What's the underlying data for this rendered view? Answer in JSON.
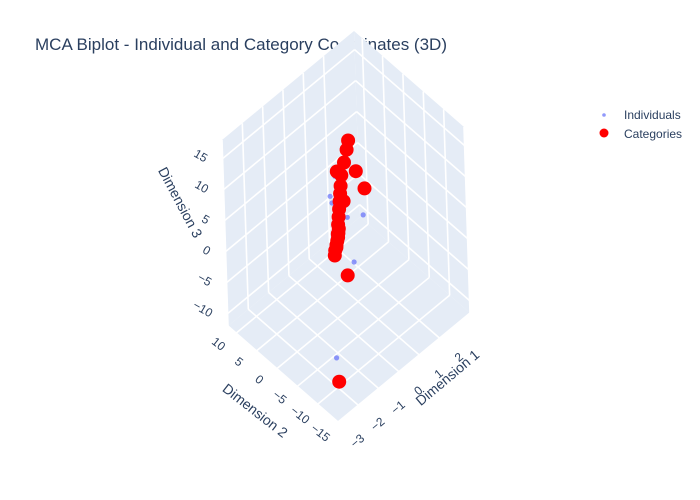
{
  "chart_data": {
    "type": "scatter3d",
    "title": "MCA Biplot - Individual and Category Coordinates (3D)",
    "axes": {
      "x": {
        "label": "Dimension 1",
        "range": [
          -3,
          3.5
        ],
        "ticks": [
          -3,
          -2,
          -1,
          0,
          1,
          2
        ]
      },
      "y": {
        "label": "Dimension 2",
        "range": [
          -15,
          12
        ],
        "ticks": [
          -15,
          -10,
          -5,
          0,
          5,
          10
        ]
      },
      "z": {
        "label": "Dimension 3",
        "range": [
          -12,
          18
        ],
        "ticks": [
          -10,
          -5,
          0,
          5,
          10,
          15
        ]
      }
    },
    "legend": {
      "placement": "top-right"
    },
    "colors": {
      "individuals": "#636efa",
      "categories": "#ff0000",
      "pane": "#e5ecf6",
      "grid": "#ffffff"
    },
    "series": [
      {
        "name": "Individuals",
        "points": [
          [
            -0.9,
            -12,
            14
          ],
          [
            -0.15,
            -4,
            7
          ],
          [
            -2.4,
            -12,
            -5
          ],
          [
            0.3,
            -3,
            -2
          ],
          [
            0.2,
            2,
            6
          ],
          [
            1.6,
            8,
            2
          ],
          [
            2.4,
            7,
            1
          ],
          [
            1.8,
            10,
            -4
          ],
          [
            0.1,
            -1,
            0.5
          ],
          [
            0.25,
            0.5,
            1
          ],
          [
            -0.2,
            -1.2,
            0.2
          ]
        ]
      },
      {
        "name": "Categories",
        "points": [
          [
            -0.8,
            -12,
            18
          ],
          [
            -0.3,
            -4,
            10
          ],
          [
            -2.5,
            -13,
            -8
          ],
          [
            -0.6,
            -6,
            0
          ],
          [
            0.7,
            3,
            -2
          ],
          [
            1.7,
            8,
            2.5
          ],
          [
            2.8,
            9,
            -1
          ],
          [
            0.0,
            -0.5,
            0.8
          ],
          [
            0.2,
            0.2,
            1.1
          ],
          [
            -0.1,
            -0.8,
            0.6
          ],
          [
            0.35,
            1.0,
            1.6
          ],
          [
            0.5,
            1.6,
            2.1
          ],
          [
            0.65,
            2.2,
            2.6
          ],
          [
            0.8,
            2.8,
            3.1
          ],
          [
            0.95,
            3.4,
            3.6
          ],
          [
            1.1,
            4.0,
            4.1
          ],
          [
            1.3,
            4.8,
            4.8
          ],
          [
            1.6,
            5.6,
            5.6
          ],
          [
            1.9,
            6.4,
            6.4
          ],
          [
            2.1,
            7.0,
            7.0
          ],
          [
            -0.25,
            -1.2,
            0.3
          ],
          [
            -0.35,
            -1.6,
            0.0
          ],
          [
            -0.15,
            -1.0,
            0.4
          ],
          [
            0.1,
            -0.2,
            0.9
          ],
          [
            0.3,
            0.6,
            1.3
          ]
        ]
      }
    ]
  }
}
